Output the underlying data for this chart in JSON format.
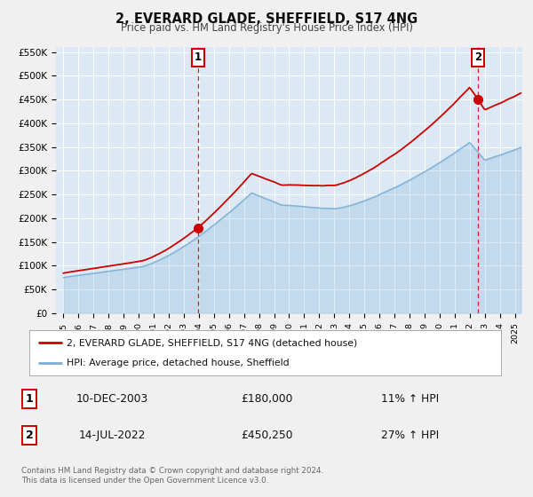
{
  "title": "2, EVERARD GLADE, SHEFFIELD, S17 4NG",
  "subtitle": "Price paid vs. HM Land Registry's House Price Index (HPI)",
  "bg_color": "#dce9f5",
  "fig_bg_color": "#f0f0f0",
  "hpi_color": "#7bafd4",
  "price_color": "#cc0000",
  "ylim": [
    0,
    560000
  ],
  "yticks": [
    0,
    50000,
    100000,
    150000,
    200000,
    250000,
    300000,
    350000,
    400000,
    450000,
    500000,
    550000
  ],
  "ytick_labels": [
    "£0",
    "£50K",
    "£100K",
    "£150K",
    "£200K",
    "£250K",
    "£300K",
    "£350K",
    "£400K",
    "£450K",
    "£500K",
    "£550K"
  ],
  "xlim_start": 1994.5,
  "xlim_end": 2025.5,
  "transaction1_date": 2003.95,
  "transaction1_price": 180000,
  "transaction2_date": 2022.54,
  "transaction2_price": 450250,
  "legend_line1": "2, EVERARD GLADE, SHEFFIELD, S17 4NG (detached house)",
  "legend_line2": "HPI: Average price, detached house, Sheffield",
  "table_row1_num": "1",
  "table_row1_date": "10-DEC-2003",
  "table_row1_price": "£180,000",
  "table_row1_hpi": "11% ↑ HPI",
  "table_row2_num": "2",
  "table_row2_date": "14-JUL-2022",
  "table_row2_price": "£450,250",
  "table_row2_hpi": "27% ↑ HPI",
  "footnote": "Contains HM Land Registry data © Crown copyright and database right 2024.\nThis data is licensed under the Open Government Licence v3.0."
}
